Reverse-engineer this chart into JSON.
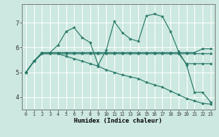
{
  "xlabel": "Humidex (Indice chaleur)",
  "bg_color": "#cce8e0",
  "grid_color": "#ffffff",
  "line_color": "#2a7a6a",
  "xlim": [
    -0.5,
    23.5
  ],
  "ylim": [
    3.5,
    7.75
  ],
  "yticks": [
    4,
    5,
    6,
    7
  ],
  "xticks": [
    0,
    1,
    2,
    3,
    4,
    5,
    6,
    7,
    8,
    9,
    10,
    11,
    12,
    13,
    14,
    15,
    16,
    17,
    18,
    19,
    20,
    21,
    22,
    23
  ],
  "series": [
    [
      5.0,
      5.45,
      5.8,
      5.8,
      6.1,
      6.65,
      6.8,
      6.4,
      6.2,
      5.3,
      5.9,
      7.05,
      6.6,
      6.35,
      6.25,
      7.28,
      7.35,
      7.25,
      6.65,
      5.85,
      5.3,
      4.2,
      4.2,
      3.8
    ],
    [
      5.0,
      5.45,
      5.8,
      5.8,
      5.8,
      5.8,
      5.8,
      5.8,
      5.8,
      5.8,
      5.8,
      5.8,
      5.8,
      5.8,
      5.8,
      5.8,
      5.8,
      5.8,
      5.8,
      5.8,
      5.8,
      5.8,
      5.95,
      5.95
    ],
    [
      5.0,
      5.45,
      5.75,
      5.75,
      5.75,
      5.75,
      5.75,
      5.75,
      5.75,
      5.75,
      5.75,
      5.75,
      5.75,
      5.75,
      5.75,
      5.75,
      5.75,
      5.75,
      5.75,
      5.75,
      5.75,
      5.75,
      5.75,
      5.75
    ],
    [
      5.0,
      5.45,
      5.75,
      5.75,
      5.75,
      5.65,
      5.55,
      5.45,
      5.35,
      5.25,
      5.1,
      5.0,
      4.9,
      4.82,
      4.75,
      4.6,
      4.5,
      4.4,
      4.25,
      4.1,
      3.95,
      3.85,
      3.75,
      3.72
    ],
    [
      5.0,
      5.45,
      5.75,
      5.75,
      5.75,
      5.75,
      5.75,
      5.75,
      5.75,
      5.75,
      5.75,
      5.75,
      5.75,
      5.75,
      5.75,
      5.75,
      5.75,
      5.75,
      5.75,
      5.75,
      5.35,
      5.35,
      5.35,
      5.35
    ]
  ]
}
